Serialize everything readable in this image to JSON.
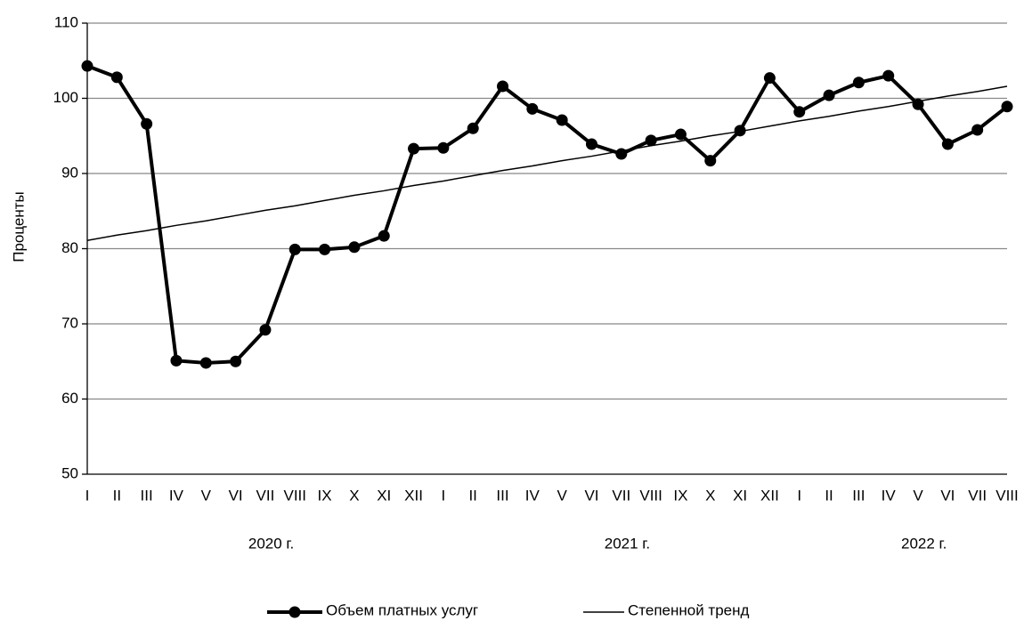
{
  "chart_data": {
    "type": "line",
    "y_label": "Проценты",
    "groups": [
      {
        "name": "2020 г.",
        "categories": [
          "I",
          "II",
          "III",
          "IV",
          "V",
          "VI",
          "VII",
          "VIII",
          "IX",
          "X",
          "XI",
          "XII"
        ]
      },
      {
        "name": "2021 г.",
        "categories": [
          "I",
          "II",
          "III",
          "IV",
          "V",
          "VI",
          "VII",
          "VIII",
          "IX",
          "X",
          "XI",
          "XII"
        ]
      },
      {
        "name": "2022 г.",
        "categories": [
          "I",
          "II",
          "III",
          "IV",
          "V",
          "VI",
          "VII",
          "VIII"
        ]
      }
    ],
    "series": [
      {
        "name": "Объем платных услуг",
        "color": "#000000",
        "markers": true,
        "values": [
          104.3,
          102.8,
          96.6,
          65.1,
          64.8,
          65.0,
          69.2,
          79.9,
          79.9,
          80.2,
          81.7,
          93.3,
          93.4,
          96.0,
          101.6,
          98.6,
          97.1,
          93.9,
          92.6,
          94.4,
          95.2,
          91.7,
          95.7,
          102.7,
          98.2,
          100.4,
          102.1,
          103.0,
          99.2,
          93.9,
          95.8,
          98.9
        ]
      },
      {
        "name": "Степенной тренд",
        "color": "#000000",
        "markers": false,
        "values": [
          81.1,
          81.8,
          82.4,
          83.1,
          83.7,
          84.4,
          85.1,
          85.7,
          86.4,
          87.1,
          87.7,
          88.4,
          89.0,
          89.7,
          90.4,
          91.0,
          91.7,
          92.3,
          93.0,
          93.7,
          94.3,
          95.0,
          95.6,
          96.3,
          97.0,
          97.6,
          98.3,
          98.9,
          99.6,
          100.3,
          100.9,
          101.6
        ]
      }
    ],
    "ylim": [
      50,
      110
    ],
    "yticks": [
      50,
      60,
      70,
      80,
      90,
      100,
      110
    ],
    "grid": true
  }
}
